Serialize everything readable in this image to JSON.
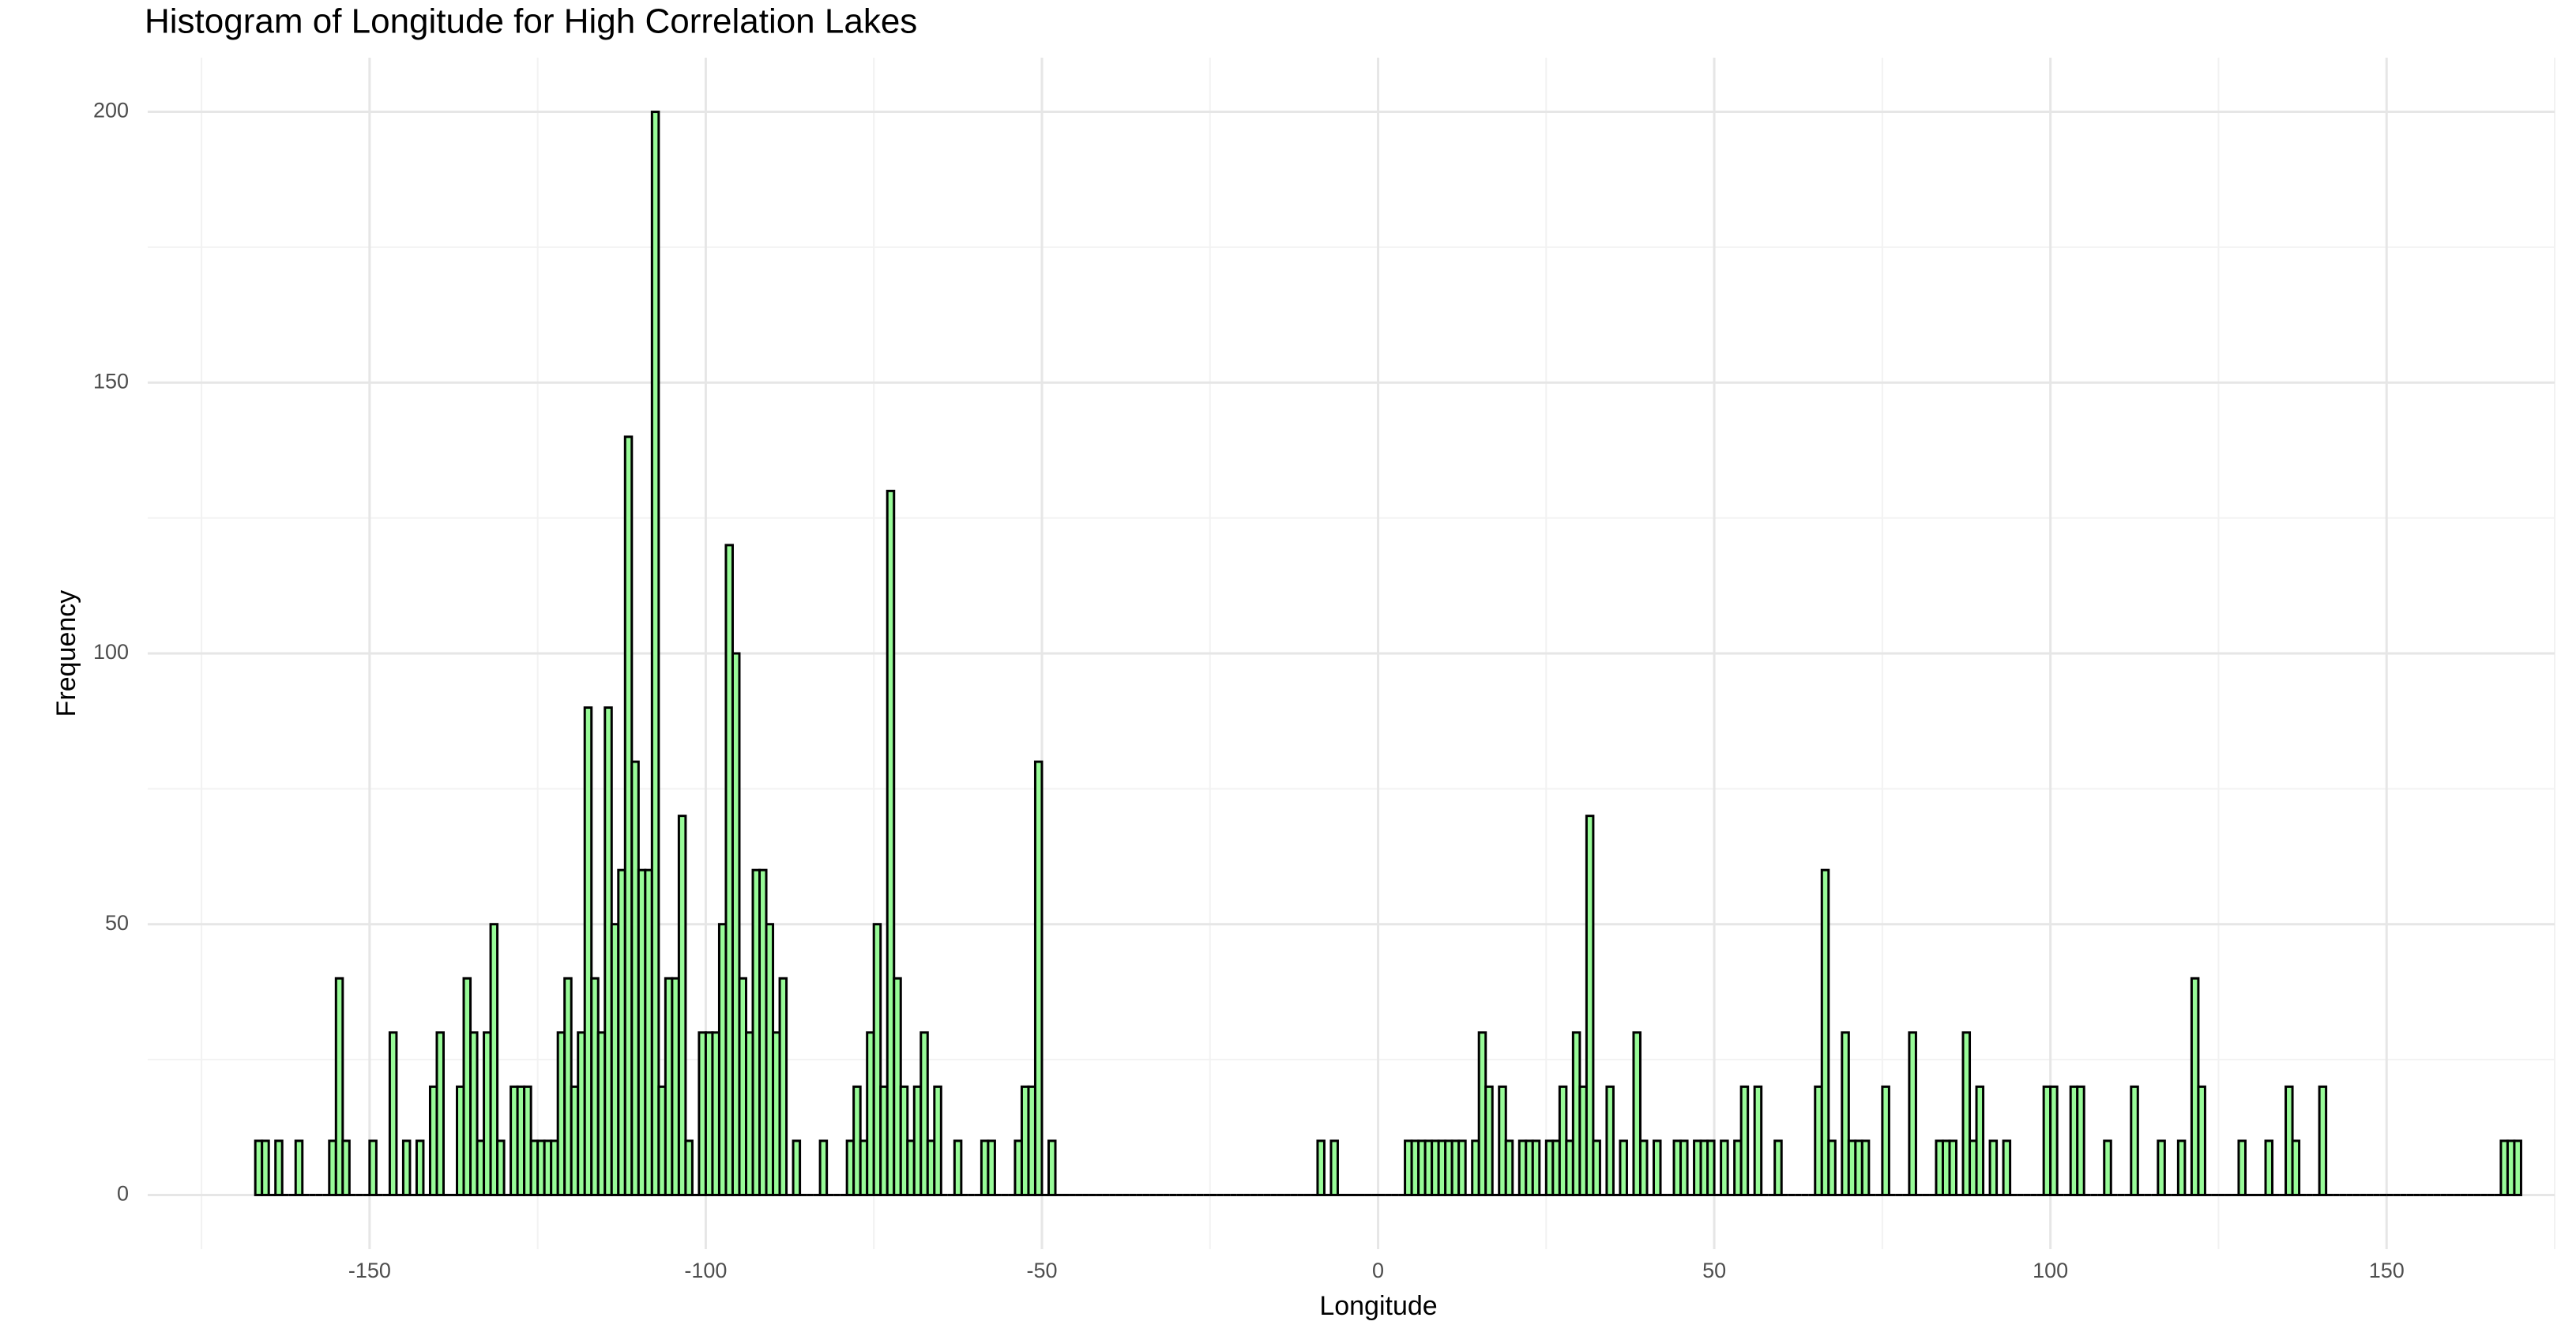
{
  "chart_data": {
    "type": "histogram",
    "title": "Histogram of Longitude for High Correlation Lakes",
    "x_label": "Longitude",
    "y_label": "Frequency",
    "color": "#98fb98",
    "edgecolor": "#000000",
    "grid": true,
    "xlim": [
      -183,
      175
    ],
    "ylim": [
      -10,
      210
    ],
    "xticks": [
      -150,
      -100,
      -50,
      0,
      50,
      100,
      150
    ],
    "yticks": [
      0,
      50,
      100,
      150,
      200
    ],
    "bins": [
      -167,
      -166,
      -165,
      -164,
      -163,
      -162,
      -161,
      -160,
      -159,
      -158,
      -157,
      -156,
      -155,
      -154,
      -153,
      -152,
      -151,
      -150,
      -149,
      -148,
      -147,
      -146,
      -145,
      -144,
      -143,
      -142,
      -141,
      -140,
      -139,
      -138,
      -137,
      -136,
      -135,
      -134,
      -133,
      -132,
      -131,
      -130,
      -129,
      -128,
      -127,
      -126,
      -125,
      -124,
      -123,
      -122,
      -121,
      -120,
      -119,
      -118,
      -117,
      -116,
      -115,
      -114,
      -113,
      -112,
      -111,
      -110,
      -109,
      -108,
      -107,
      -106,
      -105,
      -104,
      -103,
      -102,
      -101,
      -100,
      -99,
      -98,
      -97,
      -96,
      -95,
      -94,
      -93,
      -92,
      -91,
      -90,
      -89,
      -88,
      -87,
      -86,
      -85,
      -84,
      -83,
      -82,
      -81,
      -80,
      -79,
      -78,
      -77,
      -76,
      -75,
      -74,
      -73,
      -72,
      -71,
      -70,
      -69,
      -68,
      -67,
      -66,
      -65,
      -64,
      -63,
      -62,
      -61,
      -60,
      -59,
      -58,
      -57,
      -56,
      -55,
      -54,
      -53,
      -52,
      -51,
      -50,
      -49,
      -48,
      -47,
      -46,
      -45,
      -44,
      -43,
      -42,
      -41,
      -40,
      -39,
      -38,
      -37,
      -36,
      -35,
      -34,
      -33,
      -32,
      -31,
      -30,
      -29,
      -28,
      -27,
      -26,
      -25,
      -24,
      -23,
      -22,
      -21,
      -20,
      -19,
      -18,
      -17,
      -16,
      -15,
      -14,
      -13,
      -12,
      -11,
      -10,
      -9,
      -8,
      -7,
      -6,
      -5,
      -4,
      -3,
      -2,
      -1,
      0,
      1,
      2,
      3,
      4,
      5,
      6,
      7,
      8,
      9,
      10,
      11,
      12,
      13,
      14,
      15,
      16,
      17,
      18,
      19,
      20,
      21,
      22,
      23,
      24,
      25,
      26,
      27,
      28,
      29,
      30,
      31,
      32,
      33,
      34,
      35,
      36,
      37,
      38,
      39,
      40,
      41,
      42,
      43,
      44,
      45,
      46,
      47,
      48,
      49,
      50,
      51,
      52,
      53,
      54,
      55,
      56,
      57,
      58,
      59,
      60,
      61,
      62,
      63,
      64,
      65,
      66,
      67,
      68,
      69,
      70,
      71,
      72,
      73,
      74,
      75,
      76,
      77,
      78,
      79,
      80,
      81,
      82,
      83,
      84,
      85,
      86,
      87,
      88,
      89,
      90,
      91,
      92,
      93,
      94,
      95,
      96,
      97,
      98,
      99,
      100,
      101,
      102,
      103,
      104,
      105,
      106,
      107,
      108,
      109,
      110,
      111,
      112,
      113,
      114,
      115,
      116,
      117,
      118,
      119,
      120,
      121,
      122,
      123,
      124,
      125,
      126,
      127,
      128,
      129,
      130,
      131,
      132,
      133,
      134,
      135,
      136,
      137,
      138,
      139,
      140,
      141,
      142,
      143,
      144,
      145,
      146,
      147,
      148,
      149,
      150,
      151,
      152,
      153,
      154,
      155,
      156,
      157,
      158,
      159,
      160,
      161,
      162,
      163,
      164,
      165,
      166,
      167,
      168,
      169,
      170
    ],
    "values": [
      10,
      10,
      0,
      10,
      0,
      0,
      10,
      0,
      0,
      0,
      0,
      10,
      40,
      10,
      0,
      0,
      0,
      10,
      0,
      0,
      30,
      0,
      10,
      0,
      10,
      0,
      20,
      30,
      0,
      0,
      20,
      40,
      30,
      10,
      30,
      50,
      10,
      0,
      20,
      20,
      20,
      10,
      10,
      10,
      10,
      30,
      40,
      20,
      30,
      90,
      40,
      30,
      90,
      50,
      60,
      140,
      80,
      60,
      60,
      200,
      20,
      40,
      40,
      70,
      10,
      0,
      30,
      30,
      30,
      50,
      120,
      100,
      40,
      30,
      60,
      60,
      50,
      30,
      40,
      0,
      10,
      0,
      0,
      0,
      10,
      0,
      0,
      0,
      10,
      20,
      10,
      30,
      50,
      20,
      130,
      40,
      20,
      10,
      20,
      30,
      10,
      20,
      0,
      0,
      10,
      0,
      0,
      0,
      10,
      10,
      0,
      0,
      0,
      10,
      20,
      20,
      80,
      0,
      10,
      0,
      0,
      0,
      0,
      0,
      0,
      0,
      0,
      0,
      0,
      0,
      0,
      0,
      0,
      0,
      0,
      0,
      0,
      0,
      0,
      0,
      0,
      0,
      0,
      0,
      0,
      0,
      0,
      0,
      0,
      0,
      0,
      0,
      0,
      0,
      0,
      0,
      0,
      0,
      10,
      0,
      10,
      0,
      0,
      0,
      0,
      0,
      0,
      0,
      0,
      0,
      0,
      10,
      10,
      10,
      10,
      10,
      10,
      10,
      10,
      10,
      0,
      10,
      30,
      20,
      0,
      20,
      10,
      0,
      10,
      10,
      10,
      0,
      10,
      10,
      20,
      10,
      30,
      20,
      70,
      10,
      0,
      20,
      0,
      10,
      0,
      30,
      10,
      0,
      10,
      0,
      0,
      10,
      10,
      0,
      10,
      10,
      10,
      0,
      10,
      0,
      10,
      20,
      0,
      20,
      0,
      0,
      10,
      0,
      0,
      0,
      0,
      0,
      20,
      60,
      10,
      0,
      30,
      10,
      10,
      10,
      0,
      0,
      20,
      0,
      0,
      0,
      30,
      0,
      0,
      0,
      10,
      10,
      10,
      0,
      30,
      10,
      20,
      0,
      10,
      0,
      10,
      0,
      0,
      0,
      0,
      0,
      20,
      20,
      0,
      0,
      20,
      20,
      0,
      0,
      0,
      10,
      0,
      0,
      0,
      20,
      0,
      0,
      0,
      10,
      0,
      0,
      10,
      0,
      40,
      20,
      0,
      0,
      0,
      0,
      0,
      10,
      0,
      0,
      0,
      10,
      0,
      0,
      20,
      10,
      0,
      0,
      0,
      20,
      0,
      0,
      0,
      0,
      0,
      0,
      0,
      0,
      0,
      0,
      0,
      0,
      0,
      0,
      0,
      0,
      0,
      0,
      0,
      0,
      0,
      0,
      0,
      0,
      0,
      0,
      10,
      10,
      10
    ]
  }
}
